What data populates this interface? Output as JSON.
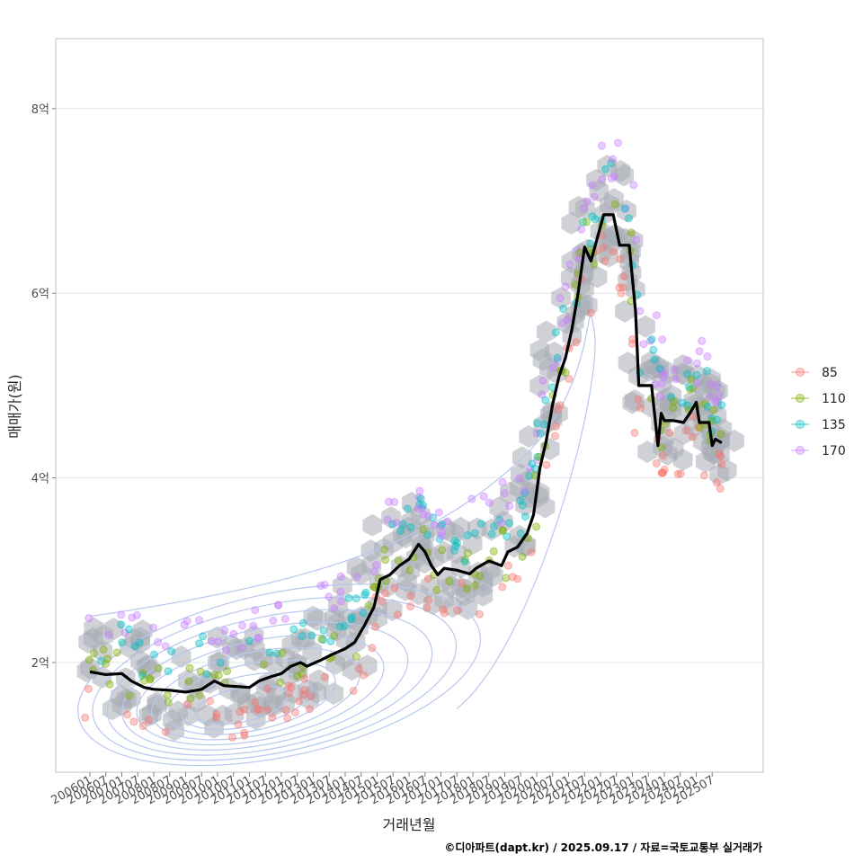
{
  "chart_data": {
    "type": "scatter",
    "xlabel": "거래년월",
    "ylabel": "매매가(원)",
    "caption": "©디아파트(dapt.kr) / 2025.09.17 / 자료=국토교통부 실거래가",
    "y_ticks": [
      {
        "value": 2,
        "label": "2억"
      },
      {
        "value": 4,
        "label": "4억"
      },
      {
        "value": 6,
        "label": "6억"
      },
      {
        "value": 8,
        "label": "8억"
      }
    ],
    "x_ticks": [
      "200601",
      "200607",
      "200701",
      "200707",
      "200801",
      "200807",
      "200901",
      "200907",
      "201001",
      "201007",
      "201101",
      "201107",
      "201201",
      "201207",
      "201301",
      "201307",
      "201401",
      "201407",
      "201501",
      "201507",
      "201601",
      "201607",
      "201701",
      "201707",
      "201801",
      "201807",
      "201901",
      "201907",
      "202001",
      "202007",
      "202101",
      "202107",
      "202201",
      "202207",
      "202301",
      "202307",
      "202401",
      "202407",
      "202501",
      "202507"
    ],
    "legend": {
      "position": "right",
      "items": [
        {
          "name": "85",
          "color": "#f8766d"
        },
        {
          "name": "110",
          "color": "#7cae00"
        },
        {
          "name": "135",
          "color": "#00bfc4"
        },
        {
          "name": "170",
          "color": "#c77cff"
        }
      ]
    },
    "trend_line": [
      [
        2006.0,
        1.9
      ],
      [
        2006.5,
        1.87
      ],
      [
        2007.0,
        1.88
      ],
      [
        2007.3,
        1.8
      ],
      [
        2007.7,
        1.73
      ],
      [
        2008.0,
        1.71
      ],
      [
        2008.5,
        1.7
      ],
      [
        2009.0,
        1.68
      ],
      [
        2009.5,
        1.71
      ],
      [
        2009.9,
        1.8
      ],
      [
        2010.2,
        1.75
      ],
      [
        2010.6,
        1.74
      ],
      [
        2011.0,
        1.73
      ],
      [
        2011.3,
        1.8
      ],
      [
        2011.7,
        1.85
      ],
      [
        2012.0,
        1.88
      ],
      [
        2012.3,
        1.96
      ],
      [
        2012.6,
        2.0
      ],
      [
        2012.8,
        1.96
      ],
      [
        2013.2,
        2.02
      ],
      [
        2013.6,
        2.09
      ],
      [
        2014.0,
        2.15
      ],
      [
        2014.3,
        2.22
      ],
      [
        2014.6,
        2.4
      ],
      [
        2014.9,
        2.6
      ],
      [
        2015.1,
        2.9
      ],
      [
        2015.4,
        2.95
      ],
      [
        2015.7,
        3.05
      ],
      [
        2016.0,
        3.12
      ],
      [
        2016.3,
        3.28
      ],
      [
        2016.5,
        3.2
      ],
      [
        2016.7,
        3.05
      ],
      [
        2016.9,
        2.95
      ],
      [
        2017.1,
        3.02
      ],
      [
        2017.5,
        3.0
      ],
      [
        2017.9,
        2.96
      ],
      [
        2018.1,
        3.02
      ],
      [
        2018.5,
        3.1
      ],
      [
        2018.9,
        3.05
      ],
      [
        2019.1,
        3.2
      ],
      [
        2019.4,
        3.25
      ],
      [
        2019.7,
        3.4
      ],
      [
        2019.9,
        3.6
      ],
      [
        2020.1,
        4.1
      ],
      [
        2020.3,
        4.4
      ],
      [
        2020.5,
        4.8
      ],
      [
        2020.7,
        5.1
      ],
      [
        2020.9,
        5.3
      ],
      [
        2021.1,
        5.6
      ],
      [
        2021.3,
        6.0
      ],
      [
        2021.5,
        6.5
      ],
      [
        2021.7,
        6.35
      ],
      [
        2021.9,
        6.6
      ],
      [
        2022.1,
        6.85
      ],
      [
        2022.4,
        6.85
      ],
      [
        2022.6,
        6.52
      ],
      [
        2022.9,
        6.52
      ],
      [
        2023.1,
        5.8
      ],
      [
        2023.2,
        5.0
      ],
      [
        2023.6,
        5.0
      ],
      [
        2023.8,
        4.35
      ],
      [
        2023.9,
        4.7
      ],
      [
        2024.0,
        4.62
      ],
      [
        2024.3,
        4.62
      ],
      [
        2024.6,
        4.6
      ],
      [
        2024.8,
        4.7
      ],
      [
        2025.0,
        4.82
      ],
      [
        2025.1,
        4.6
      ],
      [
        2025.4,
        4.6
      ],
      [
        2025.5,
        4.35
      ],
      [
        2025.6,
        4.42
      ],
      [
        2025.8,
        4.38
      ]
    ]
  }
}
